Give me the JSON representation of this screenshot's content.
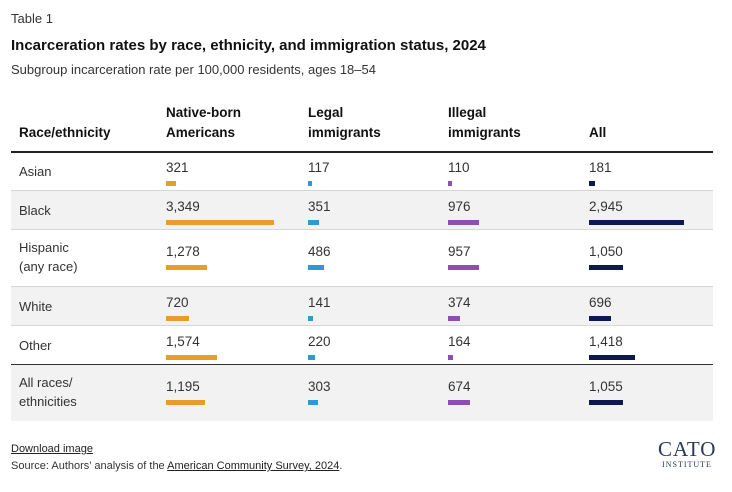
{
  "header": {
    "table_number": "Table 1",
    "title": "Incarceration rates by race, ethnicity, and immigration status, 2024",
    "subtitle": "Subgroup incarceration rate per 100,000 residents, ages 18–54"
  },
  "chart_data": {
    "type": "table",
    "columns": [
      {
        "label_line1": "Race/ethnicity",
        "label_line2": ""
      },
      {
        "label_line1": "Native-born",
        "label_line2": "Americans"
      },
      {
        "label_line1": "Legal",
        "label_line2": "immigrants"
      },
      {
        "label_line1": "Illegal",
        "label_line2": "immigrants"
      },
      {
        "label_line1": "All",
        "label_line2": ""
      }
    ],
    "series_colors": [
      "#e89c2c",
      "#2d9bd2",
      "#8e4fb0",
      "#0e1a4f"
    ],
    "bar_scale_max": 3349,
    "rows": [
      {
        "label_line1": "Asian",
        "label_line2": "",
        "values": [
          321,
          117,
          110,
          181
        ],
        "display": [
          "321",
          "117",
          "110",
          "181"
        ]
      },
      {
        "label_line1": "Black",
        "label_line2": "",
        "values": [
          3349,
          351,
          976,
          2945
        ],
        "display": [
          "3,349",
          "351",
          "976",
          "2,945"
        ]
      },
      {
        "label_line1": "Hispanic",
        "label_line2": "(any race)",
        "values": [
          1278,
          486,
          957,
          1050
        ],
        "display": [
          "1,278",
          "486",
          "957",
          "1,050"
        ]
      },
      {
        "label_line1": "White",
        "label_line2": "",
        "values": [
          720,
          141,
          374,
          696
        ],
        "display": [
          "720",
          "141",
          "374",
          "696"
        ]
      },
      {
        "label_line1": "Other",
        "label_line2": "",
        "values": [
          1574,
          220,
          164,
          1418
        ],
        "display": [
          "1,574",
          "220",
          "164",
          "1,418"
        ]
      },
      {
        "label_line1": "All races/",
        "label_line2": "ethnicities",
        "values": [
          1195,
          303,
          674,
          1055
        ],
        "display": [
          "1,195",
          "303",
          "674",
          "1,055"
        ]
      }
    ]
  },
  "footer": {
    "download_label": "Download image",
    "source_prefix": "Source: Authors’ analysis of the ",
    "source_link": "American Community Survey, 2024",
    "source_suffix": "."
  },
  "logo": {
    "line1": "CATO",
    "line2": "INSTITUTE"
  }
}
